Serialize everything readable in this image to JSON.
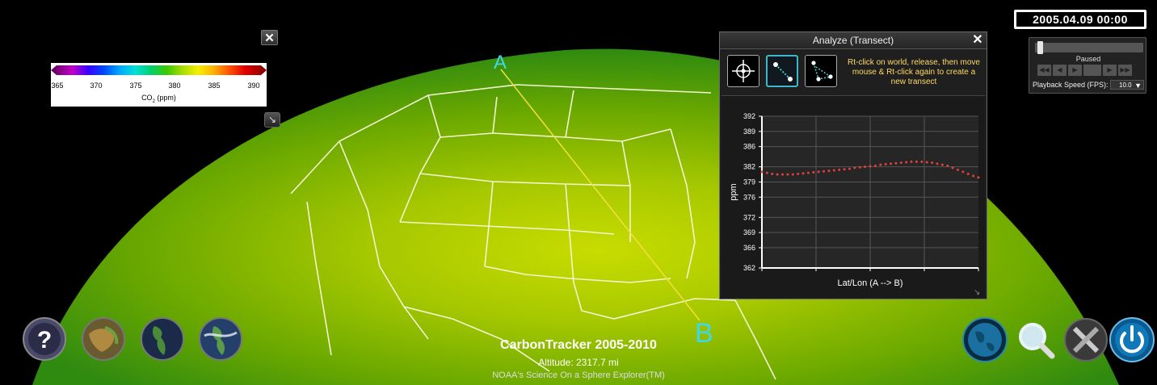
{
  "colorbar": {
    "close_label": "✕",
    "ticks": [
      "365",
      "370",
      "375",
      "380",
      "385",
      "390"
    ],
    "unit_main": "CO",
    "unit_sub": "2",
    "unit_rest": " (ppm)"
  },
  "globe": {
    "marker_a": "A",
    "marker_b": "B"
  },
  "analyze": {
    "title": "Analyze  (Transect)",
    "close_label": "✕",
    "hint": "Rt-click on world, release, then move mouse & Rt-click again to create a new transect",
    "tools": [
      {
        "name": "point-probe-icon",
        "active": false
      },
      {
        "name": "transect-icon",
        "active": true
      },
      {
        "name": "path-icon",
        "active": false
      }
    ]
  },
  "timestamp": "2005.04.09 00:00",
  "playback": {
    "state": "Paused",
    "position_fraction": 0.02,
    "speed_label": "Playback Speed (FPS):",
    "speed_value": "10.0"
  },
  "captions": {
    "title": "CarbonTracker 2005-2010",
    "altitude": "Altitude: 2317.7 mi",
    "credit": "NOAA's Science On a Sphere Explorer(TM)"
  },
  "buttons": {
    "left": [
      "help-button",
      "dataset-button",
      "globe-view-button",
      "layers-button"
    ],
    "right": [
      "globe-button",
      "search-button",
      "tools-button",
      "power-button"
    ]
  },
  "chart_data": {
    "type": "scatter",
    "xlabel": "Lat/Lon (A --> B)",
    "ylabel": "ppm",
    "ylim": [
      362,
      392
    ],
    "yticks": [
      362,
      366,
      369,
      372,
      376,
      379,
      382,
      386,
      389,
      392
    ],
    "grid": true,
    "series": [
      {
        "color": "#e04040",
        "x": [
          0,
          1,
          2,
          3,
          4,
          5,
          6,
          7,
          8,
          9,
          10,
          11,
          12,
          13,
          14,
          15,
          16,
          17,
          18,
          19,
          20,
          21,
          22,
          23,
          24,
          25,
          26,
          27,
          28,
          29,
          30,
          31,
          32,
          33,
          34,
          35,
          36,
          37,
          38,
          39,
          40,
          41,
          42
        ],
        "values": [
          381.0,
          380.8,
          380.6,
          380.5,
          380.5,
          380.5,
          380.5,
          380.6,
          380.7,
          380.8,
          380.9,
          381.0,
          381.1,
          381.2,
          381.3,
          381.4,
          381.5,
          381.6,
          381.8,
          381.9,
          382.0,
          382.1,
          382.2,
          382.4,
          382.5,
          382.6,
          382.7,
          382.8,
          382.9,
          383.0,
          383.0,
          383.0,
          382.9,
          382.8,
          382.6,
          382.4,
          382.2,
          381.8,
          381.4,
          381.0,
          380.6,
          380.2,
          379.9
        ]
      }
    ]
  }
}
